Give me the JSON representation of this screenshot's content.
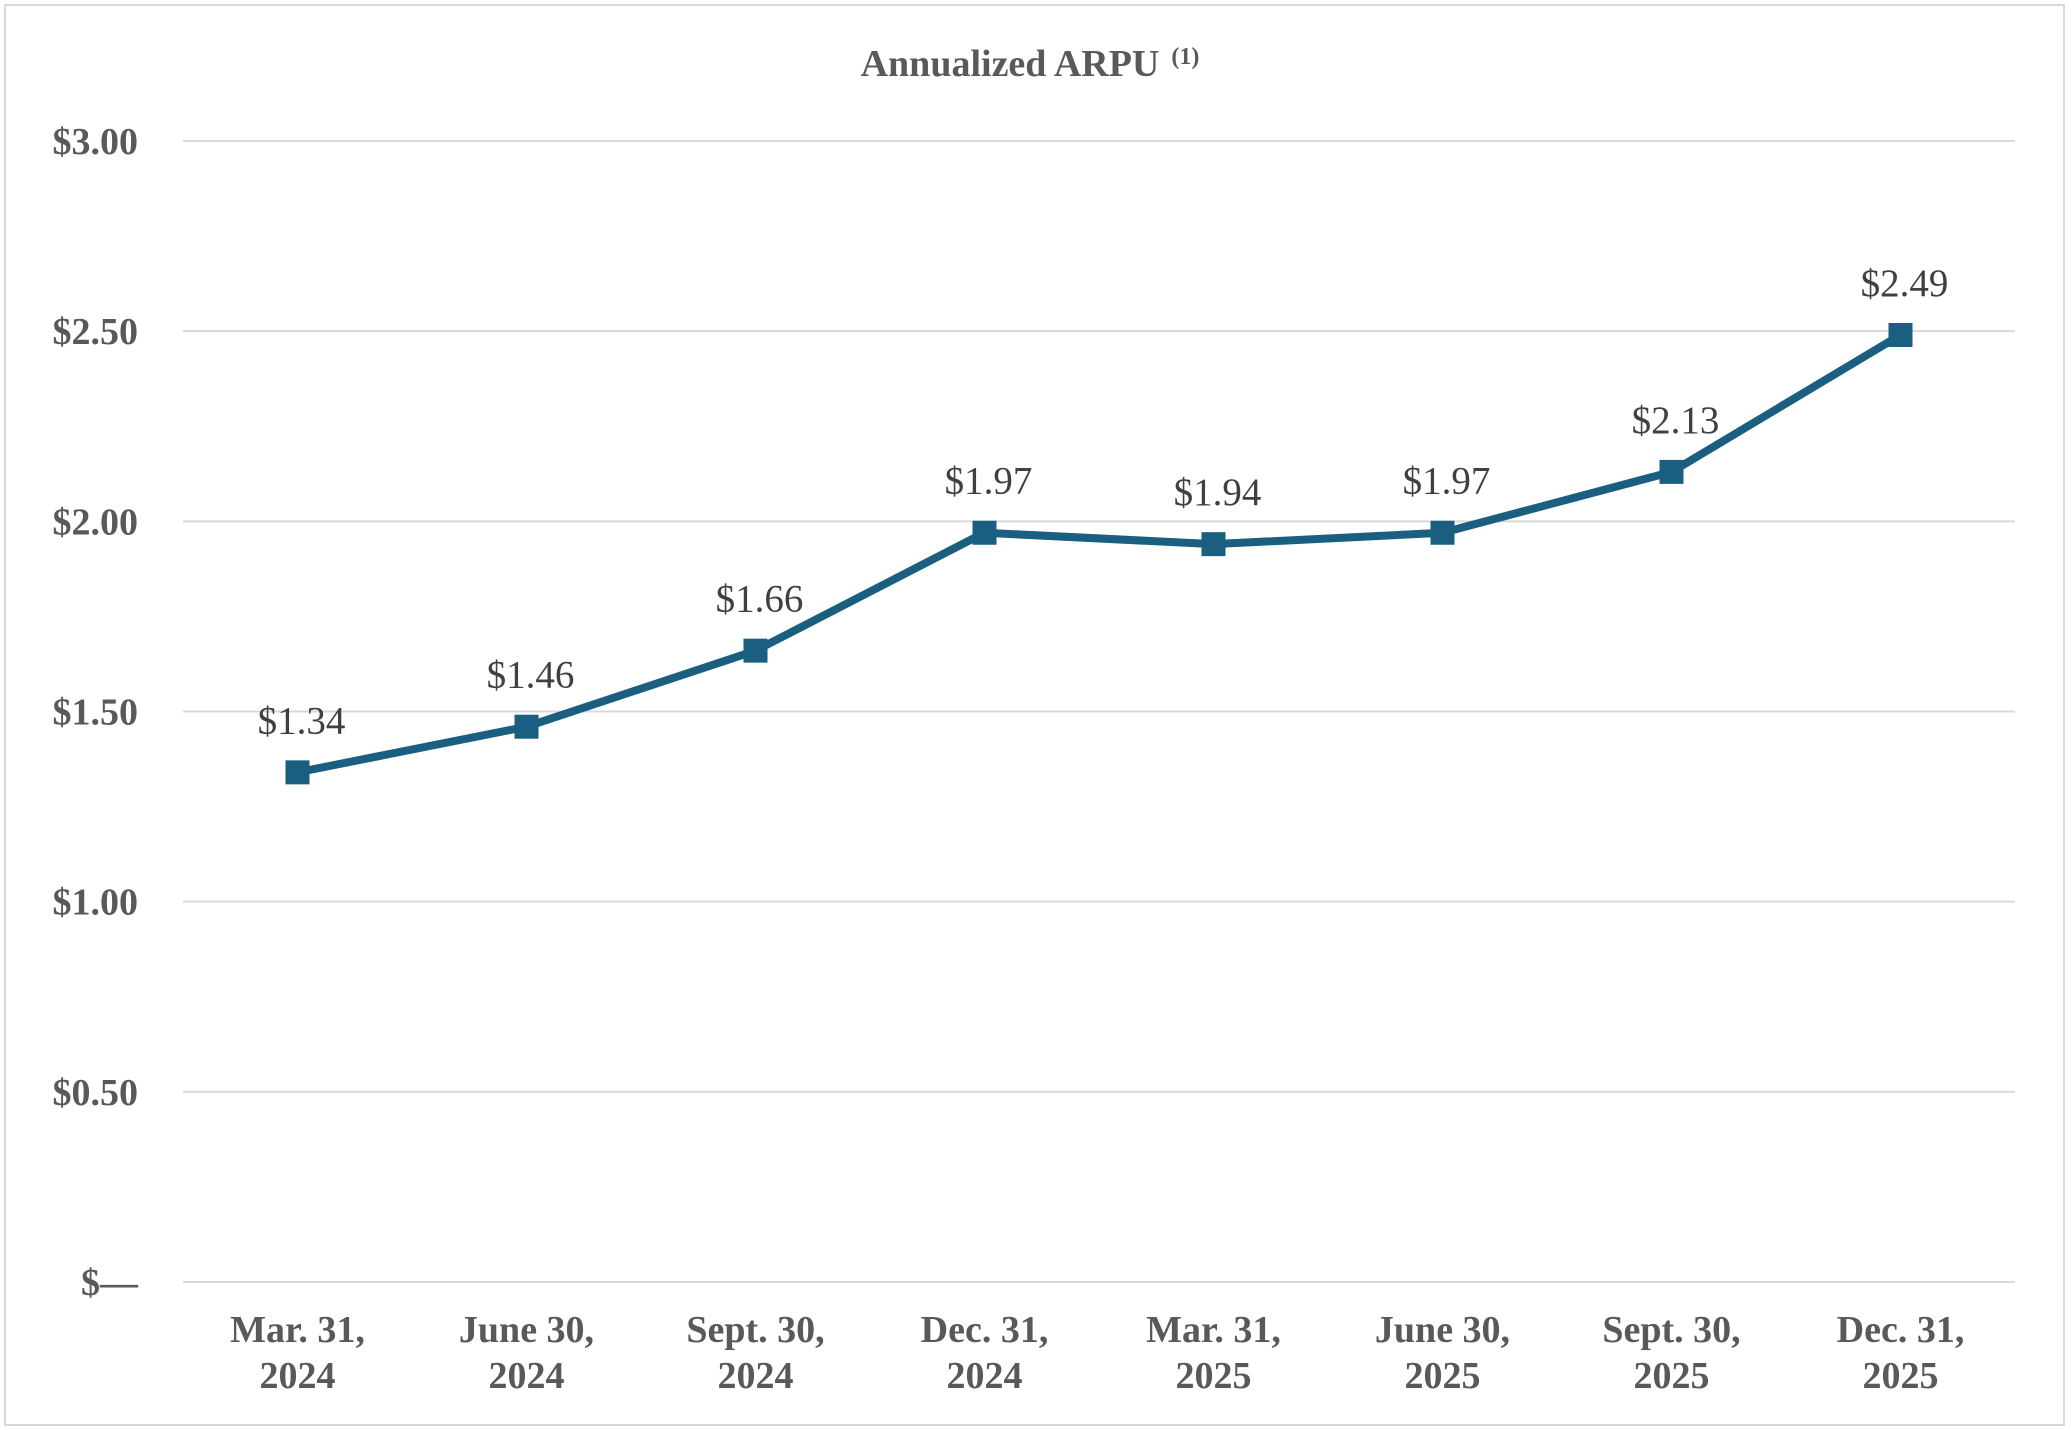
{
  "chart_data": {
    "type": "line",
    "title": "Annualized ARPU",
    "title_superscript": "(1)",
    "categories": [
      [
        "Mar. 31,",
        "2024"
      ],
      [
        "June 30,",
        "2024"
      ],
      [
        "Sept. 30,",
        "2024"
      ],
      [
        "Dec. 31,",
        "2024"
      ],
      [
        "Mar. 31,",
        "2025"
      ],
      [
        "June 30,",
        "2025"
      ],
      [
        "Sept. 30,",
        "2025"
      ],
      [
        "Dec. 31,",
        "2025"
      ]
    ],
    "series": [
      {
        "name": "Annualized ARPU",
        "values": [
          1.34,
          1.46,
          1.66,
          1.97,
          1.94,
          1.97,
          2.13,
          2.49
        ],
        "labels": [
          "$1.34",
          "$1.46",
          "$1.66",
          "$1.97",
          "$1.94",
          "$1.97",
          "$2.13",
          "$2.49"
        ],
        "color": "#1a5f80"
      }
    ],
    "ylim": [
      0,
      3
    ],
    "yticks": [
      0,
      0.5,
      1,
      1.5,
      2,
      2.5,
      3
    ],
    "ytick_labels": [
      "$—",
      "$0.50",
      "$1.00",
      "$1.50",
      "$2.00",
      "$2.50",
      "$3.00"
    ],
    "xlabel": "",
    "ylabel": "",
    "grid": true,
    "legend": "none"
  }
}
